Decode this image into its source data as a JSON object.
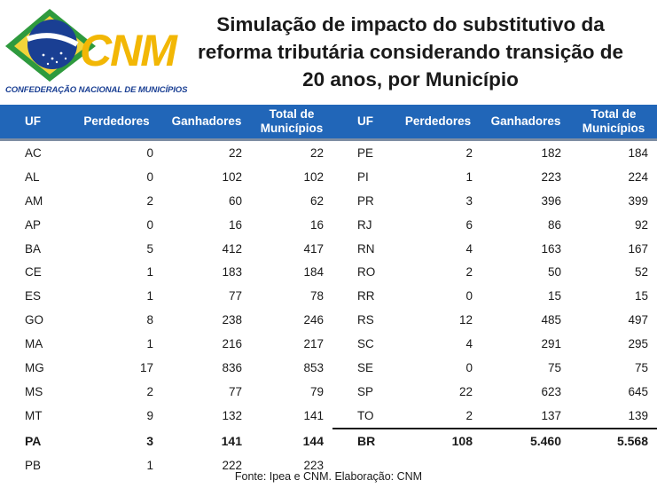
{
  "logo": {
    "name": "CNM",
    "subtitle": "CONFEDERAÇÃO NACIONAL DE MUNICÍPIOS"
  },
  "title": [
    "Simulação de impacto do substitutivo da",
    "reforma tributária considerando transição de",
    "20 anos, por Município"
  ],
  "headers": {
    "uf": "UF",
    "perdedores": "Perdedores",
    "ganhadores": "Ganhadores",
    "total_line1": "Total de",
    "total_line2": "Municípios"
  },
  "left_rows": [
    [
      "AC",
      "0",
      "22",
      "22"
    ],
    [
      "AL",
      "0",
      "102",
      "102"
    ],
    [
      "AM",
      "2",
      "60",
      "62"
    ],
    [
      "AP",
      "0",
      "16",
      "16"
    ],
    [
      "BA",
      "5",
      "412",
      "417"
    ],
    [
      "CE",
      "1",
      "183",
      "184"
    ],
    [
      "ES",
      "1",
      "77",
      "78"
    ],
    [
      "GO",
      "8",
      "238",
      "246"
    ],
    [
      "MA",
      "1",
      "216",
      "217"
    ],
    [
      "MG",
      "17",
      "836",
      "853"
    ],
    [
      "MS",
      "2",
      "77",
      "79"
    ],
    [
      "MT",
      "9",
      "132",
      "141"
    ],
    [
      "PA",
      "3",
      "141",
      "144"
    ],
    [
      "PB",
      "1",
      "222",
      "223"
    ]
  ],
  "right_rows": [
    [
      "PE",
      "2",
      "182",
      "184"
    ],
    [
      "PI",
      "1",
      "223",
      "224"
    ],
    [
      "PR",
      "3",
      "396",
      "399"
    ],
    [
      "RJ",
      "6",
      "86",
      "92"
    ],
    [
      "RN",
      "4",
      "163",
      "167"
    ],
    [
      "RO",
      "2",
      "50",
      "52"
    ],
    [
      "RR",
      "0",
      "15",
      "15"
    ],
    [
      "RS",
      "12",
      "485",
      "497"
    ],
    [
      "SC",
      "4",
      "291",
      "295"
    ],
    [
      "SE",
      "0",
      "75",
      "75"
    ],
    [
      "SP",
      "22",
      "623",
      "645"
    ],
    [
      "TO",
      "2",
      "137",
      "139"
    ]
  ],
  "total_row": [
    "BR",
    "108",
    "5.460",
    "5.568"
  ],
  "footer": "Fonte: Ipea e CNM. Elaboração: CNM",
  "colors": {
    "header_bg": "#2166b8",
    "logo_yellow": "#f2b705",
    "logo_blue": "#1a3f93",
    "logo_green": "#2e9a3e"
  }
}
